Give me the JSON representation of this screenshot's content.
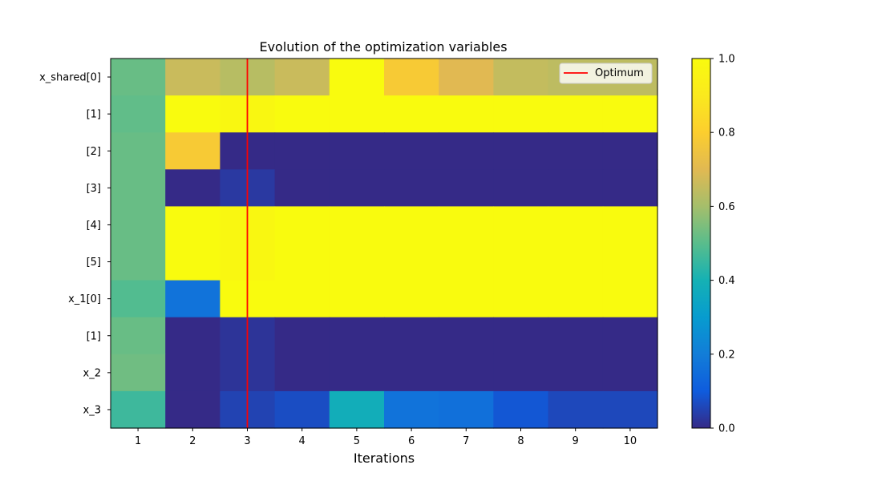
{
  "chart_data": {
    "type": "heatmap",
    "title": "Evolution of the optimization variables",
    "xlabel": "Iterations",
    "ylabel": "",
    "x": [
      1,
      2,
      3,
      4,
      5,
      6,
      7,
      8,
      9,
      10
    ],
    "y_labels": [
      "x_shared[0]",
      "[1]",
      "[2]",
      "[3]",
      "[4]",
      "[5]",
      "x_1[0]",
      "[1]",
      "x_2",
      "x_3"
    ],
    "values": [
      [
        0.52,
        0.66,
        0.63,
        0.66,
        1.0,
        0.78,
        0.7,
        0.65,
        0.64,
        0.64
      ],
      [
        0.51,
        1.0,
        0.98,
        1.0,
        1.0,
        1.0,
        1.0,
        1.0,
        1.0,
        1.0
      ],
      [
        0.52,
        0.78,
        0.0,
        0.0,
        0.0,
        0.0,
        0.0,
        0.0,
        0.0,
        0.0
      ],
      [
        0.52,
        0.0,
        0.03,
        0.0,
        0.0,
        0.0,
        0.0,
        0.0,
        0.0,
        0.0
      ],
      [
        0.52,
        1.0,
        0.98,
        1.0,
        1.0,
        1.0,
        1.0,
        1.0,
        1.0,
        1.0
      ],
      [
        0.52,
        1.0,
        0.98,
        1.0,
        1.0,
        1.0,
        1.0,
        1.0,
        1.0,
        1.0
      ],
      [
        0.49,
        0.17,
        1.0,
        1.0,
        1.0,
        1.0,
        1.0,
        1.0,
        1.0,
        1.0
      ],
      [
        0.52,
        0.0,
        0.02,
        0.0,
        0.0,
        0.0,
        0.0,
        0.0,
        0.0,
        0.0
      ],
      [
        0.53,
        0.0,
        0.02,
        0.0,
        0.0,
        0.0,
        0.0,
        0.0,
        0.0,
        0.0
      ],
      [
        0.46,
        0.0,
        0.05,
        0.07,
        0.38,
        0.17,
        0.16,
        0.09,
        0.06,
        0.06
      ]
    ],
    "colorbar": {
      "range": [
        0.0,
        1.0
      ],
      "ticks": [
        "0.0",
        "0.2",
        "0.4",
        "0.6",
        "0.8",
        "1.0"
      ],
      "tick_values": [
        0.0,
        0.2,
        0.4,
        0.6,
        0.8,
        1.0
      ],
      "colormap": "parula"
    },
    "optimum": {
      "iteration": 3,
      "color": "#ff0000",
      "legend_label": "Optimum",
      "legend_position": "top-right"
    },
    "grid": false
  }
}
